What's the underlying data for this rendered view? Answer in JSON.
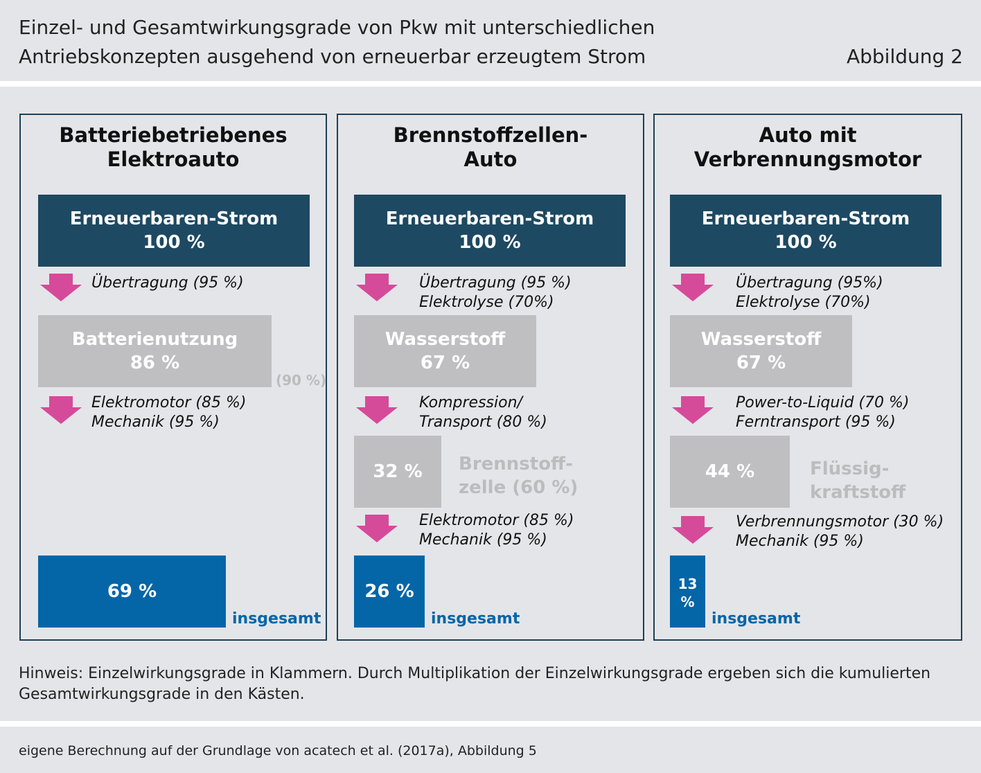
{
  "header": {
    "title_line1": "Einzel- und Gesamtwirkungsgrade von Pkw mit unterschiedlichen",
    "title_line2": "Antriebskonzepten ausgehend von erneuerbar erzeugtem Strom",
    "figure_label": "Abbildung 2"
  },
  "colors": {
    "band_background": "#e4e5e9",
    "panel_border": "#1d3f55",
    "dark_box": "#1e4962",
    "grey_box": "#bfbfc1",
    "result_blue": "#0466a7",
    "arrow_pink": "#d64a9a"
  },
  "panels": [
    {
      "title_line1": "Batteriebetriebenes",
      "title_line2": "Elektroauto",
      "source_box": {
        "label": "Erneuerbaren-Strom",
        "value": "100 %"
      },
      "step1": {
        "line1": "Übertragung (95 %)",
        "line2": ""
      },
      "mid_box": {
        "label": "Batterienutzung",
        "value": "86 %",
        "side_note": "(90 %)"
      },
      "step2": {
        "line1": "Elektromotor (85 %)",
        "line2": "Mechanik (95 %)"
      },
      "total": {
        "value": "69 %",
        "label": "insgesamt"
      }
    },
    {
      "title_line1": "Brennstoffzellen-",
      "title_line2": "Auto",
      "source_box": {
        "label": "Erneuerbaren-Strom",
        "value": "100 %"
      },
      "step1": {
        "line1": "Übertragung (95 %)",
        "line2": "Elektrolyse (70%)"
      },
      "mid_box": {
        "label": "Wasserstoff",
        "value": "67 %"
      },
      "step2": {
        "line1": "Kompression/",
        "line2": "Transport (80 %)"
      },
      "third_box": {
        "value": "32 %",
        "side_line1": "Brennstoff-",
        "side_line2": "zelle (60 %)"
      },
      "step3": {
        "line1": "Elektromotor (85 %)",
        "line2": "Mechanik (95 %)"
      },
      "total": {
        "value": "26 %",
        "label": "insgesamt"
      }
    },
    {
      "title_line1": "Auto mit",
      "title_line2": "Verbrennungsmotor",
      "source_box": {
        "label": "Erneuerbaren-Strom",
        "value": "100 %"
      },
      "step1": {
        "line1": "Übertragung (95%)",
        "line2": "Elektrolyse (70%)"
      },
      "mid_box": {
        "label": "Wasserstoff",
        "value": "67 %"
      },
      "step2": {
        "line1": "Power-to-Liquid (70 %)",
        "line2": "Ferntransport (95 %)"
      },
      "third_box": {
        "value": "44 %",
        "side_line1": "Flüssig-",
        "side_line2": "kraftstoff"
      },
      "step3": {
        "line1": "Verbrennungsmotor (30 %)",
        "line2": "Mechanik (95 %)"
      },
      "total": {
        "value": "13 %",
        "label": "insgesamt"
      }
    }
  ],
  "note": {
    "line1": "Hinweis: Einzelwirkungsgrade in Klammern. Durch Multiplikation der Einzelwirkungsgrade ergeben sich die kumulierten",
    "line2": "Gesamtwirkungsgrade in den Kästen."
  },
  "source": "eigene Berechnung auf der Grundlage von acatech et al. (2017a), Abbildung 5"
}
